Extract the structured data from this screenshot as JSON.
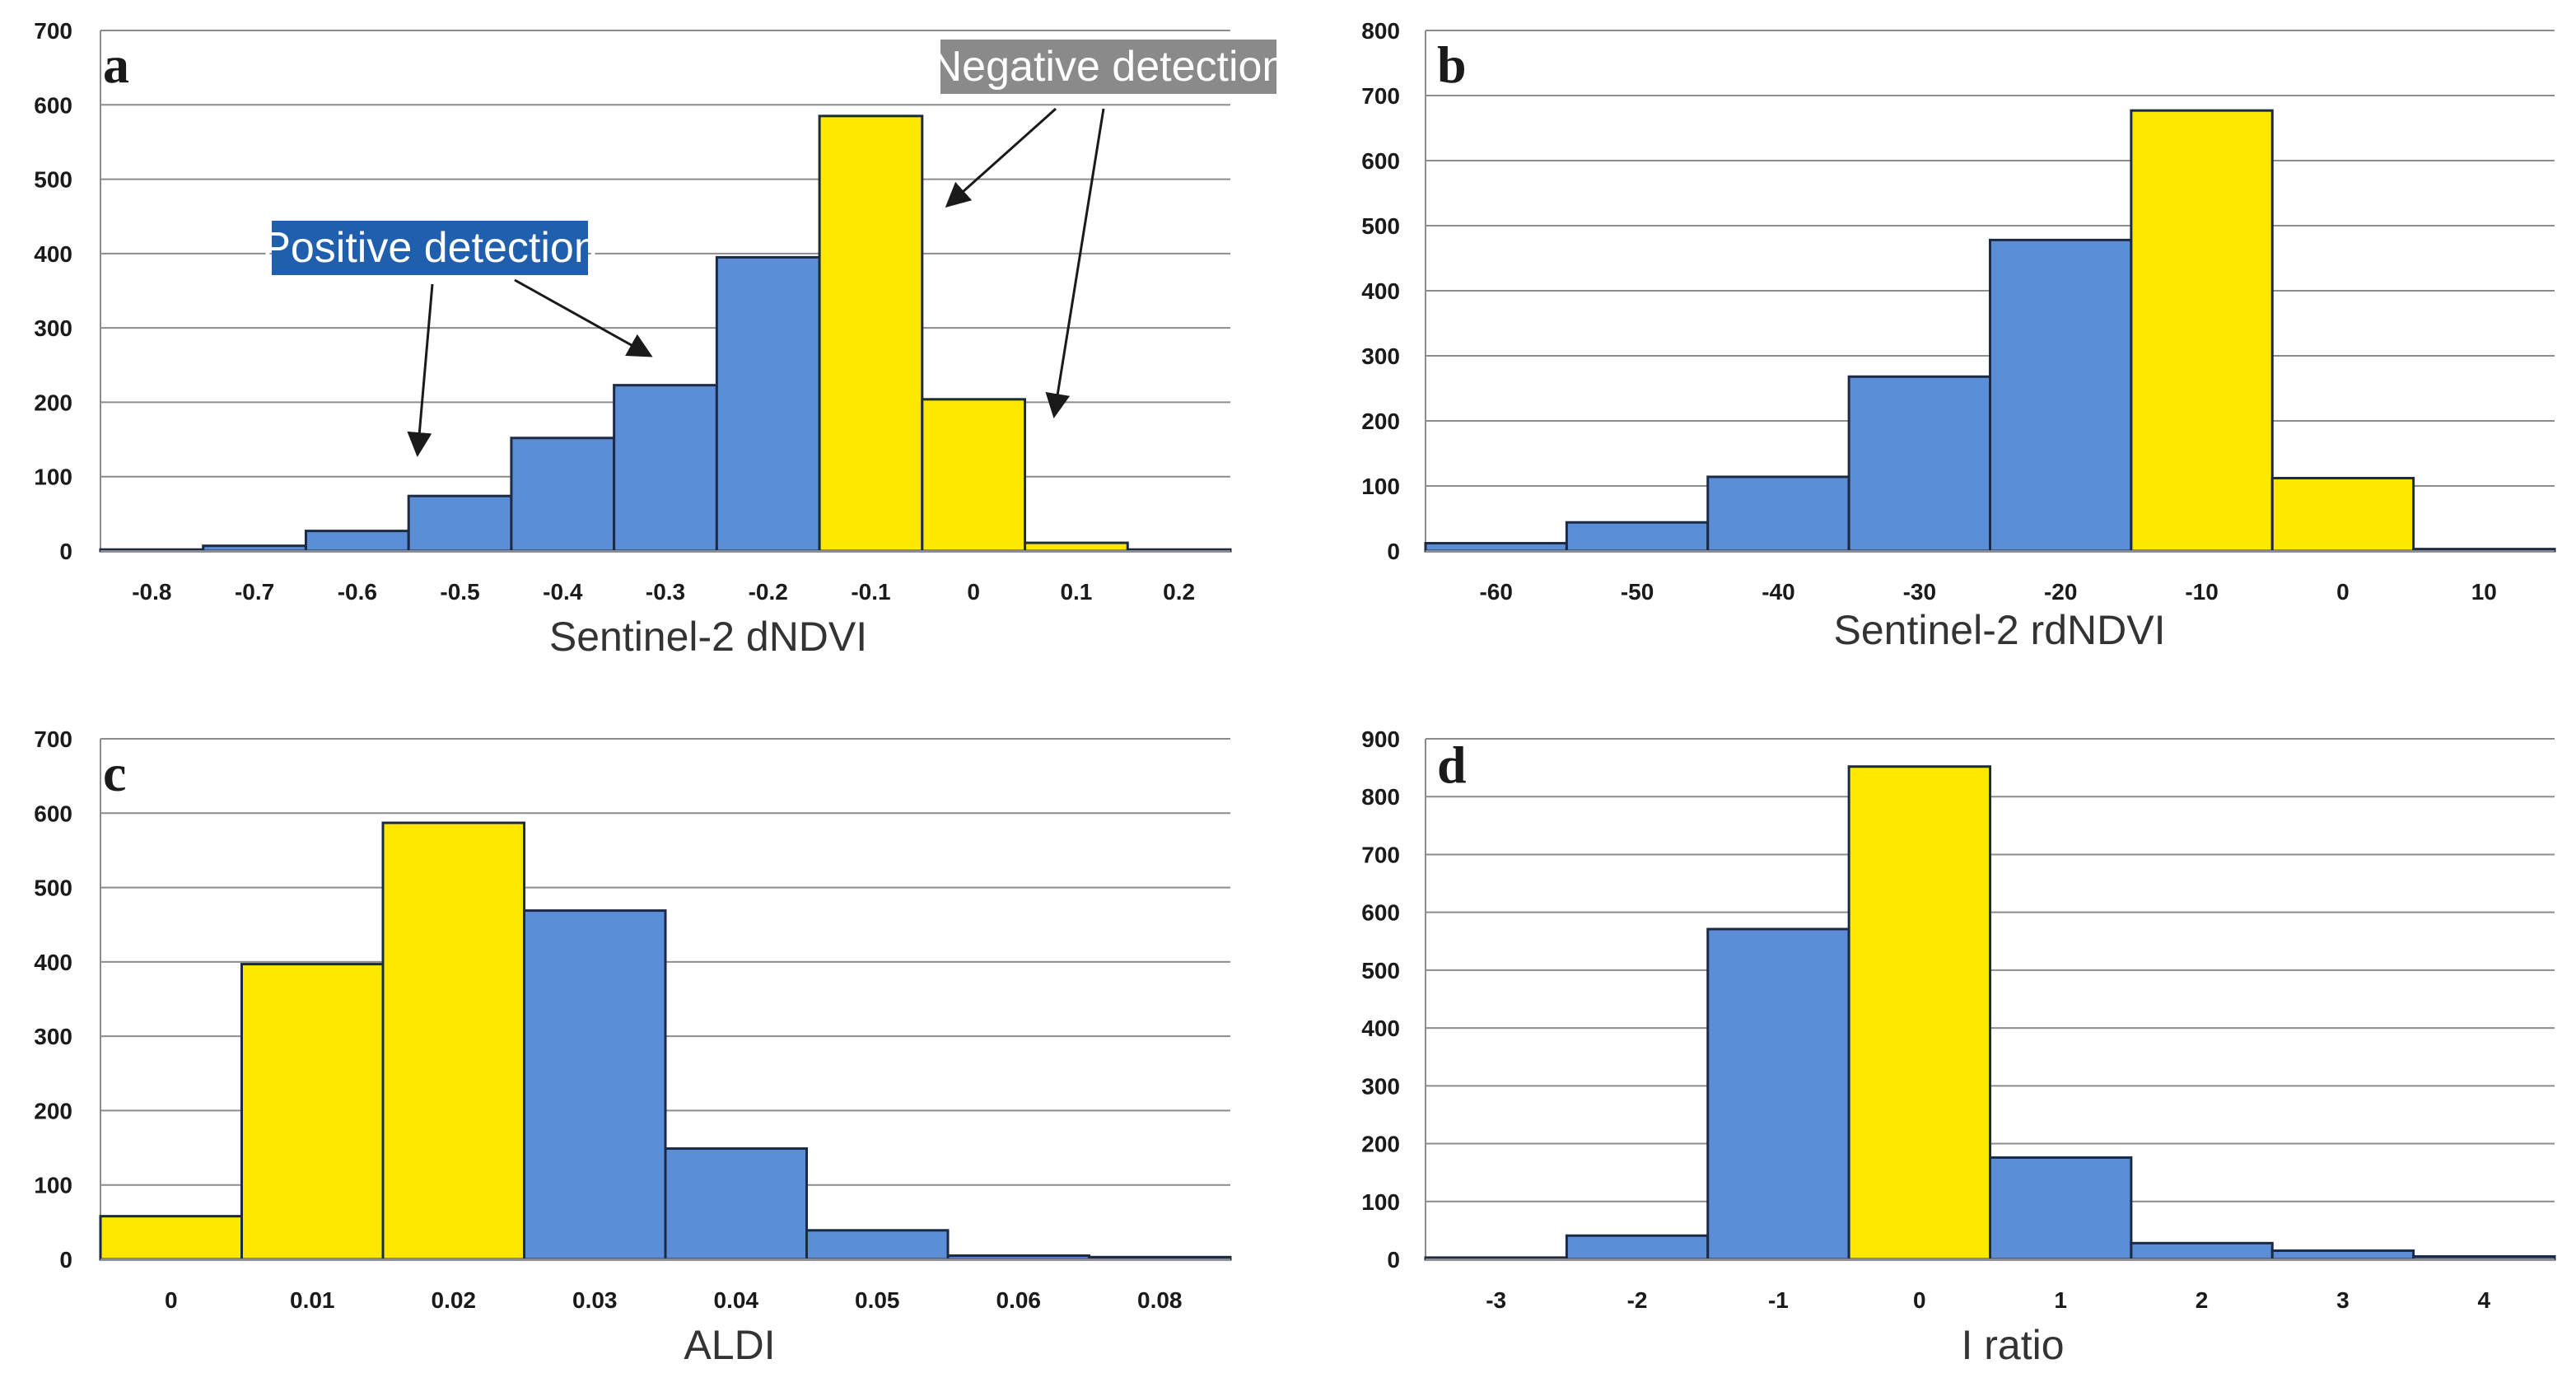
{
  "colors": {
    "positive": "#5b8ed6",
    "negative": "#ffe800",
    "positive_label_bg": "#1f5fad",
    "negative_label_bg": "#8a8a8a"
  },
  "chart_data": [
    {
      "type": "bar",
      "panel": "a",
      "xlabel": "Sentinel-2 dNDVI",
      "ylabel": "",
      "ylim": [
        0,
        700
      ],
      "yticks": [
        "0",
        "100",
        "200",
        "300",
        "400",
        "500",
        "600",
        "700"
      ],
      "categories": [
        "-0.8",
        "-0.7",
        "-0.6",
        "-0.5",
        "-0.4",
        "-0.3",
        "-0.2",
        "-0.1",
        "0",
        "0.1",
        "0.2"
      ],
      "values": [
        2,
        7,
        27,
        74,
        152,
        223,
        395,
        585,
        204,
        11,
        2
      ],
      "classes": [
        "positive",
        "positive",
        "positive",
        "positive",
        "positive",
        "positive",
        "positive",
        "negative",
        "negative",
        "negative",
        "negative"
      ],
      "grid": true,
      "annotations": [
        {
          "text": "Positive detection",
          "class": "positive"
        },
        {
          "text": "Negative detection",
          "class": "negative"
        }
      ]
    },
    {
      "type": "bar",
      "panel": "b",
      "xlabel": "Sentinel-2 rdNDVI",
      "ylabel": "",
      "ylim": [
        0,
        800
      ],
      "yticks": [
        "0",
        "100",
        "200",
        "300",
        "400",
        "500",
        "600",
        "700",
        "800"
      ],
      "categories": [
        "-60",
        "-50",
        "-40",
        "-30",
        "-20",
        "-10",
        "0",
        "10"
      ],
      "values": [
        12,
        44,
        114,
        268,
        478,
        677,
        112,
        3
      ],
      "classes": [
        "positive",
        "positive",
        "positive",
        "positive",
        "positive",
        "negative",
        "negative",
        "negative"
      ],
      "grid": true
    },
    {
      "type": "bar",
      "panel": "c",
      "xlabel": "ALDI",
      "ylabel": "",
      "ylim": [
        0,
        700
      ],
      "yticks": [
        "0",
        "100",
        "200",
        "300",
        "400",
        "500",
        "600",
        "700"
      ],
      "categories": [
        "0",
        "0.01",
        "0.02",
        "0.03",
        "0.04",
        "0.05",
        "0.06",
        "0.08"
      ],
      "values": [
        58,
        397,
        587,
        469,
        149,
        39,
        5,
        3
      ],
      "classes": [
        "negative",
        "negative",
        "negative",
        "positive",
        "positive",
        "positive",
        "positive",
        "positive"
      ],
      "grid": true
    },
    {
      "type": "bar",
      "panel": "d",
      "xlabel": "I ratio",
      "ylabel": "",
      "ylim": [
        0,
        900
      ],
      "yticks": [
        "0",
        "100",
        "200",
        "300",
        "400",
        "500",
        "600",
        "700",
        "800",
        "900"
      ],
      "categories": [
        "-3",
        "-2",
        "-1",
        "0",
        "1",
        "2",
        "3",
        "4"
      ],
      "values": [
        3,
        41,
        571,
        852,
        176,
        28,
        15,
        5
      ],
      "classes": [
        "positive",
        "positive",
        "positive",
        "negative",
        "positive",
        "positive",
        "positive",
        "positive"
      ],
      "grid": true
    }
  ]
}
